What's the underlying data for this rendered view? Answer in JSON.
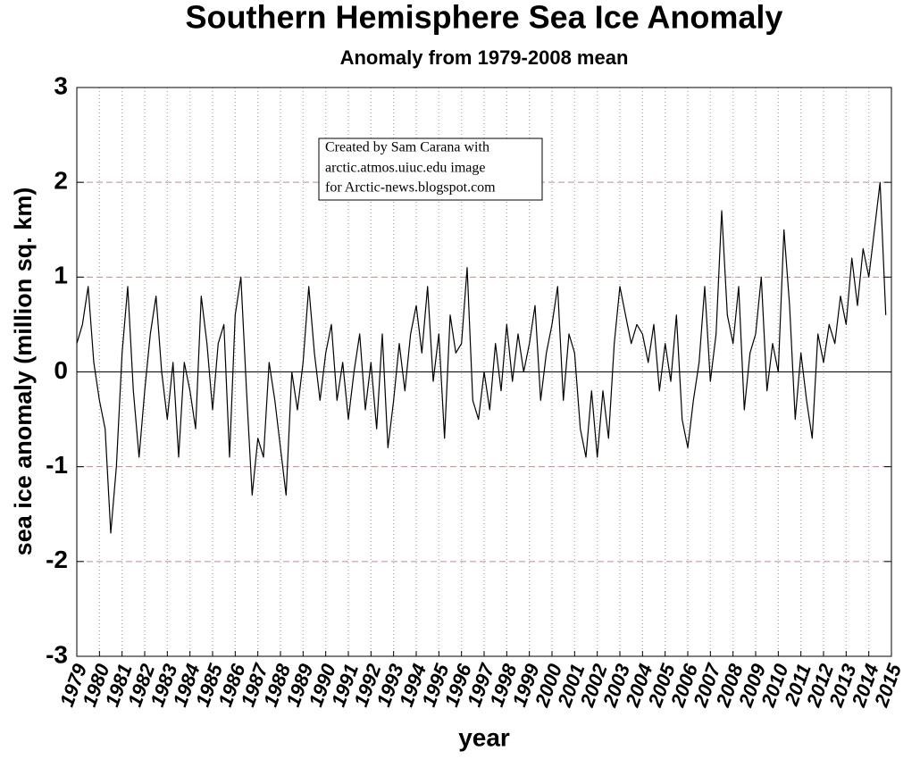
{
  "chart_data": {
    "type": "line",
    "title": "Southern Hemisphere Sea Ice Anomaly",
    "subtitle": "Anomaly from 1979-2008 mean",
    "x_label": "year",
    "y_label": "sea ice anomaly (million sq. km)",
    "annotation": [
      "Created by Sam Carana with",
      "arctic.atmos.uiuc.edu image",
      "for Arctic-news.blogspot.com"
    ],
    "xlim": [
      1979,
      2015
    ],
    "xticks": [
      1979,
      1980,
      1981,
      1982,
      1983,
      1984,
      1985,
      1986,
      1987,
      1988,
      1989,
      1990,
      1991,
      1992,
      1993,
      1994,
      1995,
      1996,
      1997,
      1998,
      1999,
      2000,
      2001,
      2002,
      2003,
      2004,
      2005,
      2006,
      2007,
      2008,
      2009,
      2010,
      2011,
      2012,
      2013,
      2014,
      2015
    ],
    "ylim": [
      -3,
      3
    ],
    "yticks": [
      -3,
      -2,
      -1,
      0,
      1,
      2,
      3
    ],
    "grid": true,
    "series": [
      {
        "name": "anomaly",
        "color": "#000000",
        "x": [
          1979,
          1979.25,
          1979.5,
          1979.75,
          1980,
          1980.25,
          1980.5,
          1980.75,
          1981,
          1981.25,
          1981.5,
          1981.75,
          1982,
          1982.25,
          1982.5,
          1982.75,
          1983,
          1983.25,
          1983.5,
          1983.75,
          1984,
          1984.25,
          1984.5,
          1984.75,
          1985,
          1985.25,
          1985.5,
          1985.75,
          1986,
          1986.25,
          1986.5,
          1986.75,
          1987,
          1987.25,
          1987.5,
          1987.75,
          1988,
          1988.25,
          1988.5,
          1988.75,
          1989,
          1989.25,
          1989.5,
          1989.75,
          1990,
          1990.25,
          1990.5,
          1990.75,
          1991,
          1991.25,
          1991.5,
          1991.75,
          1992,
          1992.25,
          1992.5,
          1992.75,
          1993,
          1993.25,
          1993.5,
          1993.75,
          1994,
          1994.25,
          1994.5,
          1994.75,
          1995,
          1995.25,
          1995.5,
          1995.75,
          1996,
          1996.25,
          1996.5,
          1996.75,
          1997,
          1997.25,
          1997.5,
          1997.75,
          1998,
          1998.25,
          1998.5,
          1998.75,
          1999,
          1999.25,
          1999.5,
          1999.75,
          2000,
          2000.25,
          2000.5,
          2000.75,
          2001,
          2001.25,
          2001.5,
          2001.75,
          2002,
          2002.25,
          2002.5,
          2002.75,
          2003,
          2003.25,
          2003.5,
          2003.75,
          2004,
          2004.25,
          2004.5,
          2004.75,
          2005,
          2005.25,
          2005.5,
          2005.75,
          2006,
          2006.25,
          2006.5,
          2006.75,
          2007,
          2007.25,
          2007.5,
          2007.75,
          2008,
          2008.25,
          2008.5,
          2008.75,
          2009,
          2009.25,
          2009.5,
          2009.75,
          2010,
          2010.25,
          2010.5,
          2010.75,
          2011,
          2011.25,
          2011.5,
          2011.75,
          2012,
          2012.25,
          2012.5,
          2012.75,
          2013,
          2013.25,
          2013.5,
          2013.75,
          2014,
          2014.25,
          2014.5,
          2014.75
        ],
        "values": [
          0.3,
          0.5,
          0.9,
          0.1,
          -0.3,
          -0.6,
          -1.7,
          -1.0,
          0.2,
          0.9,
          -0.2,
          -0.9,
          -0.2,
          0.4,
          0.8,
          0.0,
          -0.5,
          0.1,
          -0.9,
          0.1,
          -0.2,
          -0.6,
          0.8,
          0.3,
          -0.4,
          0.3,
          0.5,
          -0.9,
          0.6,
          1.0,
          -0.2,
          -1.3,
          -0.7,
          -0.9,
          0.1,
          -0.3,
          -0.8,
          -1.3,
          0.0,
          -0.4,
          0.1,
          0.9,
          0.2,
          -0.3,
          0.2,
          0.5,
          -0.3,
          0.1,
          -0.5,
          0.0,
          0.4,
          -0.4,
          0.1,
          -0.6,
          0.4,
          -0.8,
          -0.3,
          0.3,
          -0.2,
          0.4,
          0.7,
          0.2,
          0.9,
          -0.1,
          0.4,
          -0.7,
          0.6,
          0.2,
          0.3,
          1.1,
          -0.3,
          -0.5,
          0.0,
          -0.4,
          0.3,
          -0.2,
          0.5,
          -0.1,
          0.4,
          0.0,
          0.3,
          0.7,
          -0.3,
          0.2,
          0.5,
          0.9,
          -0.3,
          0.4,
          0.2,
          -0.6,
          -0.9,
          -0.2,
          -0.9,
          -0.2,
          -0.7,
          0.3,
          0.9,
          0.6,
          0.3,
          0.5,
          0.4,
          0.1,
          0.5,
          -0.2,
          0.3,
          -0.1,
          0.6,
          -0.5,
          -0.8,
          -0.3,
          0.1,
          0.9,
          -0.1,
          0.4,
          1.7,
          0.6,
          0.3,
          0.9,
          -0.4,
          0.2,
          0.4,
          1.0,
          -0.2,
          0.3,
          0.0,
          1.5,
          0.7,
          -0.5,
          0.2,
          -0.3,
          -0.7,
          0.4,
          0.1,
          0.5,
          0.3,
          0.8,
          0.5,
          1.2,
          0.7,
          1.3,
          1.0,
          1.5,
          2.0,
          0.6
        ]
      }
    ]
  }
}
